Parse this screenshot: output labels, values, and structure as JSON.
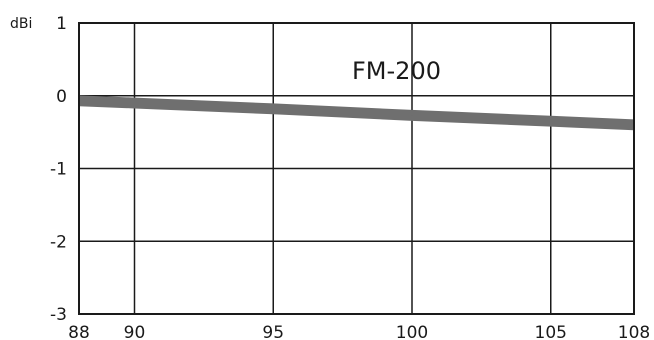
{
  "chart_data": {
    "type": "line",
    "title": "FM-200",
    "ylabel": "dBi",
    "xlabel": "",
    "xlim": [
      88,
      108
    ],
    "ylim": [
      -3,
      1
    ],
    "xticks": [
      88,
      90,
      95,
      100,
      105,
      108
    ],
    "yticks": [
      1,
      0,
      -1,
      -2,
      -3
    ],
    "grid": true,
    "series": [
      {
        "x": [
          88,
          90,
          95,
          100,
          105,
          108
        ],
        "y": [
          -0.07,
          -0.1,
          -0.18,
          -0.27,
          -0.35,
          -0.4
        ],
        "color": "#6f6f6f",
        "band": 0.15
      }
    ]
  }
}
